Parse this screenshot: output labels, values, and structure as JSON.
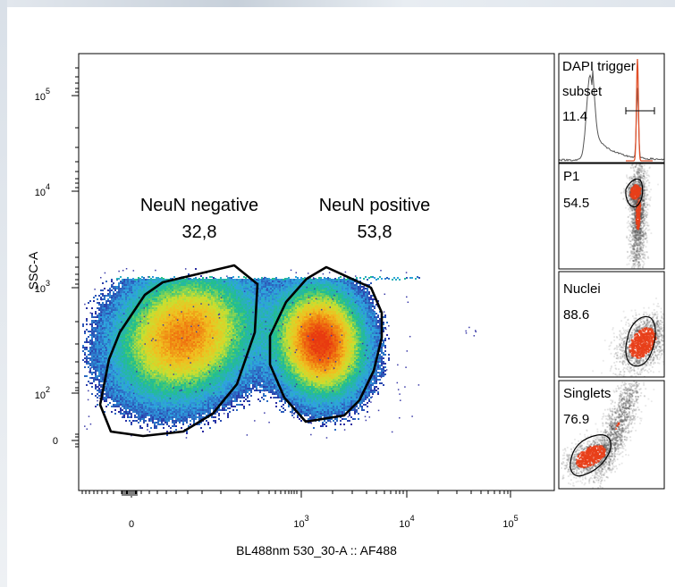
{
  "chart_data": [
    {
      "type": "heatmap",
      "plot_kind": "flow-cytometry density dot plot",
      "xlabel": "BL488nm 530_30-A :: AF488",
      "ylabel": "SSC-A",
      "x_scale": "biexponential",
      "y_scale": "biexponential",
      "x_ticks": [
        {
          "base": "0",
          "exp": ""
        },
        {
          "base": "10",
          "exp": "3"
        },
        {
          "base": "10",
          "exp": "4"
        },
        {
          "base": "10",
          "exp": "5"
        }
      ],
      "y_ticks": [
        {
          "base": "0",
          "exp": ""
        },
        {
          "base": "10",
          "exp": "2"
        },
        {
          "base": "10",
          "exp": "3"
        },
        {
          "base": "10",
          "exp": "4"
        },
        {
          "base": "10",
          "exp": "5"
        }
      ],
      "colormap": [
        "#2a2aa0",
        "#2fa3e0",
        "#22c08a",
        "#c8e030",
        "#f0c020",
        "#f07a10",
        "#e83a10"
      ],
      "gates": [
        {
          "name": "NeuN negative",
          "value": "32,8",
          "color": "#000000"
        },
        {
          "name": "NeuN positive",
          "value": "53,8",
          "color": "#000000"
        }
      ]
    },
    {
      "type": "line",
      "panel": "DAPI trigger subset",
      "labels": [
        "DAPI trigger",
        "subset"
      ],
      "value": "11.4",
      "series": [
        {
          "color": "#555555"
        },
        {
          "color": "#e0502a"
        }
      ]
    },
    {
      "type": "heatmap",
      "panel": "P1",
      "label": "P1",
      "value": "54.5"
    },
    {
      "type": "heatmap",
      "panel": "Nuclei",
      "label": "Nuclei",
      "value": "88.6"
    },
    {
      "type": "heatmap",
      "panel": "Singlets",
      "label": "Singlets",
      "value": "76.9"
    }
  ]
}
